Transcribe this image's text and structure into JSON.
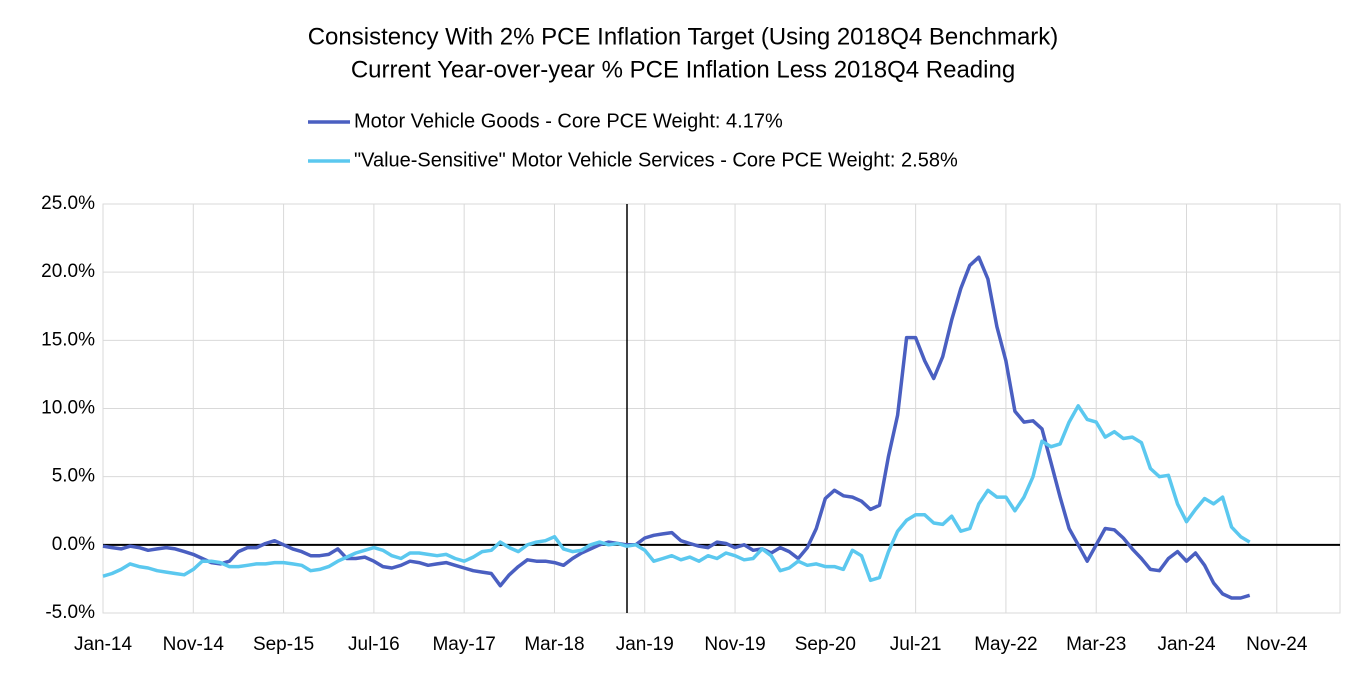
{
  "chart_data": {
    "type": "line",
    "title": "Consistency With 2% PCE Inflation Target (Using 2018Q4 Benchmark)",
    "subtitle": "Current Year-over-year % PCE Inflation Less 2018Q4 Reading",
    "categories": [
      "Jan-14",
      null,
      null,
      null,
      null,
      null,
      null,
      null,
      null,
      null,
      "Nov-14",
      null,
      null,
      null,
      null,
      null,
      null,
      null,
      null,
      null,
      "Sep-15",
      null,
      null,
      null,
      null,
      null,
      null,
      null,
      null,
      null,
      "Jul-16",
      null,
      null,
      null,
      null,
      null,
      null,
      null,
      null,
      null,
      "May-17",
      null,
      null,
      null,
      null,
      null,
      null,
      null,
      null,
      null,
      "Mar-18",
      null,
      null,
      null,
      null,
      null,
      null,
      null,
      null,
      null,
      "Jan-19",
      null,
      null,
      null,
      null,
      null,
      null,
      null,
      null,
      null,
      "Nov-19",
      null,
      null,
      null,
      null,
      null,
      null,
      null,
      null,
      null,
      "Sep-20",
      null,
      null,
      null,
      null,
      null,
      null,
      null,
      null,
      null,
      "Jul-21",
      null,
      null,
      null,
      null,
      null,
      null,
      null,
      null,
      null,
      "May-22",
      null,
      null,
      null,
      null,
      null,
      null,
      null,
      null,
      null,
      "Mar-23",
      null,
      null,
      null,
      null,
      null,
      null,
      null,
      null,
      null,
      "Jan-24",
      null,
      null,
      null,
      null,
      null,
      null,
      null,
      null,
      null,
      "Nov-24",
      null,
      null,
      null,
      null,
      null,
      null,
      null
    ],
    "series": [
      {
        "name": "Motor Vehicle Goods - Core PCE Weight: 4.17%",
        "color": "#4a5fc1",
        "values": [
          -0.1,
          -0.2,
          -0.3,
          -0.1,
          -0.2,
          -0.4,
          -0.3,
          -0.2,
          -0.3,
          -0.5,
          -0.7,
          -1.0,
          -1.3,
          -1.4,
          -1.2,
          -0.5,
          -0.2,
          -0.2,
          0.1,
          0.3,
          0.0,
          -0.3,
          -0.5,
          -0.8,
          -0.8,
          -0.7,
          -0.3,
          -1.0,
          -1.0,
          -0.9,
          -1.2,
          -1.6,
          -1.7,
          -1.5,
          -1.2,
          -1.3,
          -1.5,
          -1.4,
          -1.3,
          -1.5,
          -1.7,
          -1.9,
          -2.0,
          -2.1,
          -3.0,
          -2.2,
          -1.6,
          -1.1,
          -1.2,
          -1.2,
          -1.3,
          -1.5,
          -1.0,
          -0.6,
          -0.3,
          0.0,
          0.2,
          0.1,
          0.0,
          0.0,
          0.5,
          0.7,
          0.8,
          0.9,
          0.3,
          0.1,
          -0.1,
          -0.2,
          0.2,
          0.1,
          -0.2,
          0.0,
          -0.4,
          -0.3,
          -0.6,
          -0.2,
          -0.5,
          -1.0,
          -0.2,
          1.2,
          3.4,
          4.0,
          3.6,
          3.5,
          3.2,
          2.6,
          2.9,
          6.5,
          9.5,
          15.2,
          15.2,
          13.5,
          12.2,
          13.8,
          16.5,
          18.8,
          20.5,
          21.1,
          19.5,
          16.0,
          13.5,
          9.8,
          9.0,
          9.1,
          8.5,
          6.0,
          3.5,
          1.2,
          0.0,
          -1.2,
          0.0,
          1.2,
          1.1,
          0.5,
          -0.3,
          -1.0,
          -1.8,
          -1.9,
          -1.0,
          -0.5,
          -1.2,
          -0.6,
          -1.5,
          -2.8,
          -3.6,
          -3.9,
          -3.9,
          -3.7,
          null,
          null,
          null,
          null,
          null,
          null,
          null,
          null,
          null,
          null
        ]
      },
      {
        "name": "\"Value-Sensitive\" Motor Vehicle Services - Core PCE Weight: 2.58%",
        "color": "#5bc8ef",
        "values": [
          -2.3,
          -2.1,
          -1.8,
          -1.4,
          -1.6,
          -1.7,
          -1.9,
          -2.0,
          -2.1,
          -2.2,
          -1.8,
          -1.2,
          -1.2,
          -1.3,
          -1.6,
          -1.6,
          -1.5,
          -1.4,
          -1.4,
          -1.3,
          -1.3,
          -1.4,
          -1.5,
          -1.9,
          -1.8,
          -1.6,
          -1.2,
          -0.9,
          -0.6,
          -0.4,
          -0.2,
          -0.4,
          -0.8,
          -1.0,
          -0.6,
          -0.6,
          -0.7,
          -0.8,
          -0.7,
          -1.0,
          -1.2,
          -0.9,
          -0.5,
          -0.4,
          0.2,
          -0.2,
          -0.5,
          0.0,
          0.2,
          0.3,
          0.6,
          -0.3,
          -0.5,
          -0.4,
          0.0,
          0.2,
          0.0,
          0.1,
          -0.1,
          0.0,
          -0.4,
          -1.2,
          -1.0,
          -0.8,
          -1.1,
          -0.9,
          -1.2,
          -0.8,
          -1.0,
          -0.6,
          -0.8,
          -1.1,
          -1.0,
          -0.3,
          -0.8,
          -1.9,
          -1.7,
          -1.2,
          -1.5,
          -1.4,
          -1.6,
          -1.6,
          -1.8,
          -0.4,
          -0.8,
          -2.6,
          -2.4,
          -0.5,
          1.0,
          1.8,
          2.2,
          2.2,
          1.6,
          1.5,
          2.1,
          1.0,
          1.2,
          3.0,
          4.0,
          3.5,
          3.5,
          2.5,
          3.5,
          5.0,
          7.6,
          7.2,
          7.4,
          9.0,
          10.2,
          9.2,
          9.0,
          7.9,
          8.3,
          7.8,
          7.9,
          7.5,
          5.6,
          5.0,
          5.1,
          3.0,
          1.7,
          2.6,
          3.4,
          3.0,
          3.5,
          1.3,
          0.6,
          0.2,
          null,
          null,
          null,
          null,
          null,
          null,
          null,
          null,
          null,
          null
        ]
      }
    ],
    "ylim": [
      -5,
      25
    ],
    "yticks": [
      {
        "value": -5,
        "label": "-5.0%"
      },
      {
        "value": 0,
        "label": "0.0%"
      },
      {
        "value": 5,
        "label": "5.0%"
      },
      {
        "value": 10,
        "label": "10.0%"
      },
      {
        "value": 15,
        "label": "15.0%"
      },
      {
        "value": 20,
        "label": "20.0%"
      },
      {
        "value": 25,
        "label": "25.0%"
      }
    ],
    "grid": true,
    "legend": "top"
  }
}
